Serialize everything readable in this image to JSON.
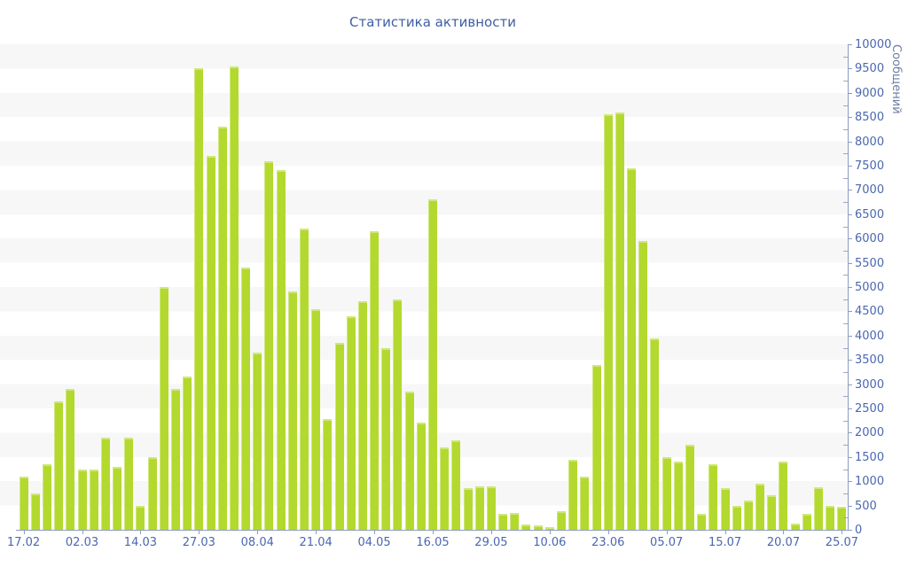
{
  "title": "Статистика активности",
  "chart_data": {
    "type": "bar",
    "title": "Статистика активности",
    "xlabel": "",
    "ylabel": "Сообщений",
    "ylim": [
      0,
      10000
    ],
    "y_tick_step": 500,
    "y_minor_tick_step": 250,
    "grid": "horizontal zebra bands every 500, alternating white / light gray",
    "legend_position": "none",
    "x_tick_labels": [
      "17.02",
      "02.03",
      "14.03",
      "27.03",
      "08.04",
      "21.04",
      "04.05",
      "16.05",
      "29.05",
      "10.06",
      "23.06",
      "05.07",
      "15.07",
      "20.07",
      "25.07"
    ],
    "x_label_every_n_bars": 5,
    "values": [
      1100,
      750,
      1350,
      2650,
      2900,
      1250,
      1250,
      1900,
      1300,
      1900,
      500,
      1500,
      5000,
      2900,
      3150,
      9500,
      7700,
      8300,
      9550,
      5400,
      3650,
      7600,
      7400,
      4900,
      6200,
      4550,
      2280,
      3850,
      4400,
      4700,
      6150,
      3750,
      4750,
      2850,
      2200,
      6800,
      1700,
      1850,
      850,
      900,
      900,
      320,
      340,
      110,
      100,
      60,
      390,
      1450,
      1100,
      3400,
      8550,
      8600,
      7450,
      5950,
      3950,
      1500,
      1400,
      1750,
      330,
      1350,
      850,
      500,
      600,
      950,
      720,
      1400,
      120,
      330,
      880,
      500,
      480
    ]
  },
  "colors": {
    "bar_fill": "#b3d92e",
    "bar_highlight_edge": "#cde87d",
    "axis_line": "#8d9cc4",
    "tick_label": "#4a67b0",
    "title_text": "#3e5ea3",
    "y_axis_title_text": "#6e7ea4",
    "stripe_band": "#f7f7f8",
    "background": "#ffffff"
  }
}
